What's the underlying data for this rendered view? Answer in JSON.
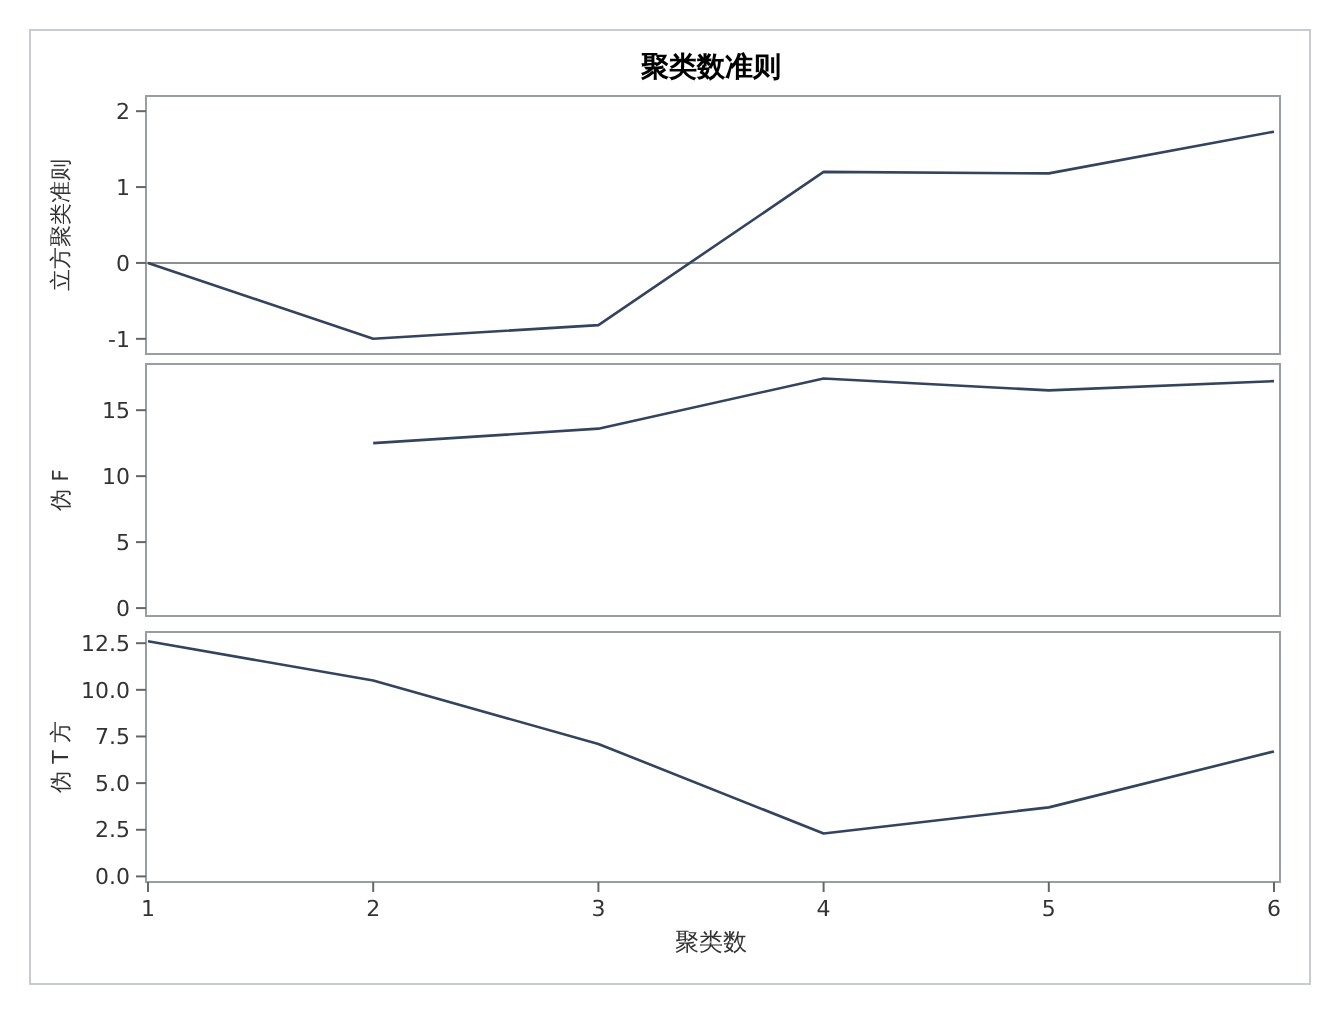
{
  "chart_data": [
    {
      "type": "line",
      "title": "聚类数准则",
      "ylabel": "立方聚类准则",
      "x": [
        1,
        2,
        3,
        4,
        5,
        6
      ],
      "series": [
        {
          "color": "#34435e",
          "values": [
            0,
            -1.0,
            -0.82,
            1.2,
            1.18,
            1.73
          ]
        }
      ],
      "xlim": [
        1,
        6
      ],
      "ylim": [
        -1.2,
        2.2
      ],
      "yticks": [
        -1,
        0,
        1,
        2
      ],
      "ref_lines": [
        {
          "axis": "y",
          "value": 0,
          "color": "#8a8f96"
        }
      ],
      "tick_labels": "y"
    },
    {
      "type": "line",
      "ylabel": "伪 F",
      "x": [
        2,
        3,
        4,
        5,
        6
      ],
      "series": [
        {
          "color": "#34435e",
          "values": [
            12.5,
            13.6,
            17.4,
            16.5,
            17.2
          ]
        }
      ],
      "xlim": [
        1,
        6
      ],
      "ylim": [
        -0.6,
        18.5
      ],
      "yticks": [
        0,
        5,
        10,
        15
      ],
      "tick_labels": "y"
    },
    {
      "type": "line",
      "ylabel": "伪 T 方",
      "xlabel": "聚类数",
      "x": [
        1,
        2,
        3,
        4,
        5,
        6
      ],
      "series": [
        {
          "color": "#34435e",
          "values": [
            12.6,
            10.5,
            7.1,
            2.3,
            3.7,
            6.7
          ]
        }
      ],
      "xlim": [
        1,
        6
      ],
      "xticks": [
        1,
        2,
        3,
        4,
        5,
        6
      ],
      "ylim": [
        -0.3,
        13.1
      ],
      "yticks": [
        {
          "value": 0,
          "label": "0.0"
        },
        {
          "value": 2.5,
          "label": "2.5"
        },
        {
          "value": 5,
          "label": "5.0"
        },
        {
          "value": 7.5,
          "label": "7.5"
        },
        {
          "value": 10,
          "label": "10.0"
        },
        {
          "value": 12.5,
          "label": "12.5"
        }
      ]
    }
  ]
}
